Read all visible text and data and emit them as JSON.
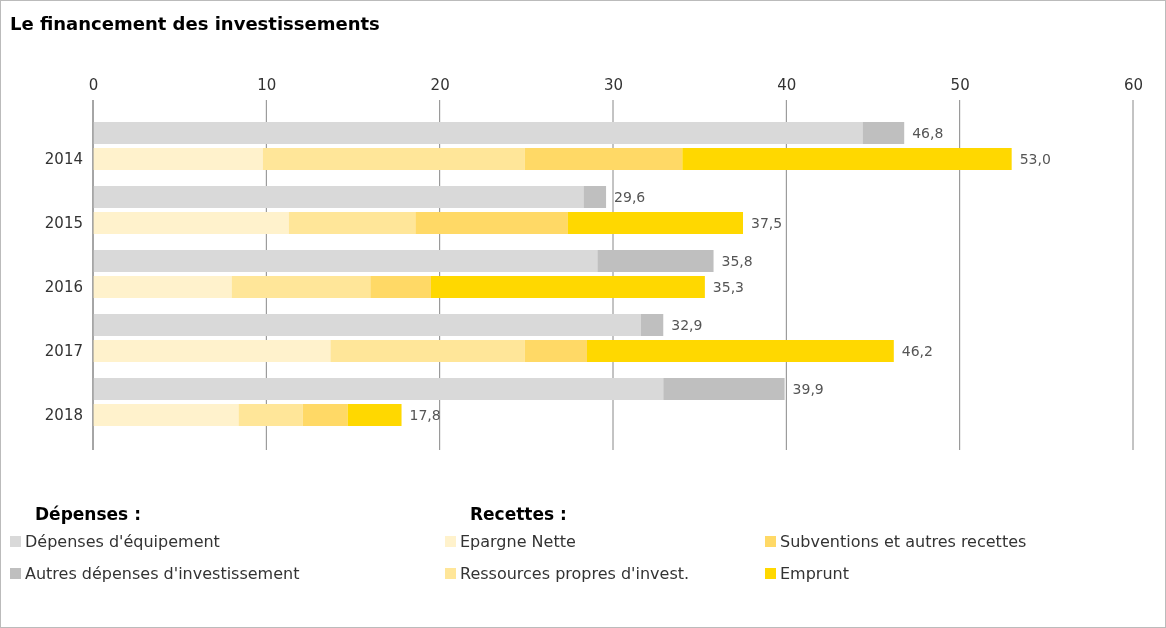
{
  "chart_data": {
    "type": "bar",
    "title": "Le financement des investissements",
    "orientation": "horizontal",
    "stacked": true,
    "categories": [
      null,
      "2014",
      null,
      "2015",
      null,
      "2016",
      null,
      "2017",
      null,
      "2018"
    ],
    "series": [
      {
        "name": "Dépenses d'équipement",
        "color": "#d9d9d9",
        "values": [
          44.4,
          null,
          28.3,
          null,
          29.1,
          null,
          31.6,
          null,
          32.9,
          null
        ]
      },
      {
        "name": "Autres dépenses d'investissement",
        "color": "#bfbfbf",
        "values": [
          2.4,
          null,
          1.3,
          null,
          6.7,
          null,
          1.3,
          null,
          7.0,
          null
        ]
      },
      {
        "name": "Epargne Nette",
        "color": "#fff2cc",
        "values": [
          null,
          9.8,
          null,
          11.3,
          null,
          8.0,
          null,
          13.7,
          null,
          8.4
        ]
      },
      {
        "name": "Ressources propres d'invest.",
        "color": "#ffe699",
        "values": [
          null,
          15.1,
          null,
          7.3,
          null,
          8.0,
          null,
          11.2,
          null,
          3.7
        ]
      },
      {
        "name": "Subventions et autres recettes",
        "color": "#ffd966",
        "values": [
          null,
          9.1,
          null,
          8.8,
          null,
          3.5,
          null,
          3.6,
          null,
          2.6
        ]
      },
      {
        "name": "Emprunt",
        "color": "#ffd800",
        "values": [
          null,
          19.0,
          null,
          10.1,
          null,
          15.8,
          null,
          17.7,
          null,
          3.1
        ]
      }
    ],
    "totals": [
      "46,8",
      "53,0",
      "29,6",
      "37,5",
      "35,8",
      "35,3",
      "32,9",
      "46,2",
      "39,9",
      "17,8"
    ],
    "xlim": [
      0,
      60
    ],
    "xticks": [
      0,
      10,
      20,
      30,
      40,
      50,
      60
    ],
    "grid": "x",
    "legend": "bottom",
    "annotations": [
      "Dépenses :",
      "Recettes :"
    ]
  }
}
